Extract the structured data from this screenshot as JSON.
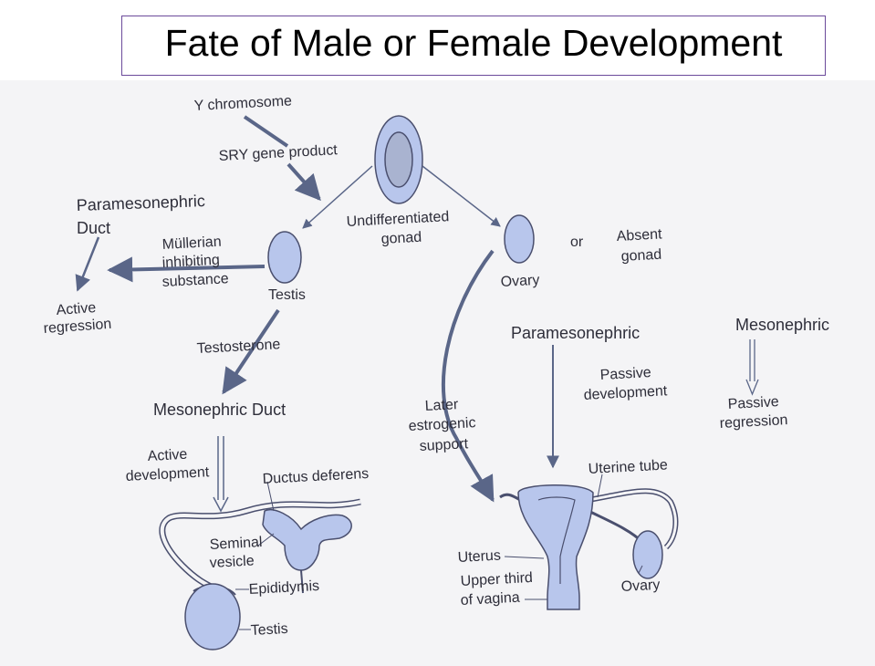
{
  "title": "Fate of Male or Female Development",
  "colors": {
    "organ_fill": "#b8c6ec",
    "organ_stroke": "#4a4f6e",
    "arrow": "#5a6688",
    "text": "#2e2e3a",
    "title_border": "#6b4a9a"
  },
  "labels": {
    "y_chromosome": "Y chromosome",
    "sry": "SRY gene product",
    "undiff_1": "Undifferentiated",
    "undiff_2": "gonad",
    "parameso_duct_1": "Paramesonephric",
    "parameso_duct_2": "Duct",
    "mis_1": "Müllerian",
    "mis_2": "inhibiting",
    "mis_3": "substance",
    "testis_top": "Testis",
    "active_regression_1": "Active",
    "active_regression_2": "regression",
    "testosterone": "Testosterone",
    "mesonephric_duct": "Mesonephric Duct",
    "active_dev_1": "Active",
    "active_dev_2": "development",
    "ductus_deferens": "Ductus deferens",
    "seminal_1": "Seminal",
    "seminal_2": "vesicle",
    "epididymis": "Epididymis",
    "testis_bottom": "Testis",
    "ovary_top": "Ovary",
    "or": "or",
    "absent_1": "Absent",
    "absent_2": "gonad",
    "paramesonephric": "Paramesonephric",
    "passive_dev_1": "Passive",
    "passive_dev_2": "development",
    "mesonephric": "Mesonephric",
    "passive_reg_1": "Passive",
    "passive_reg_2": "regression",
    "later_1": "Later",
    "later_2": "estrogenic",
    "later_3": "support",
    "uterine_tube": "Uterine tube",
    "uterus": "Uterus",
    "upper_third_1": "Upper third",
    "upper_third_2": "of vagina",
    "ovary_bottom": "Ovary"
  }
}
